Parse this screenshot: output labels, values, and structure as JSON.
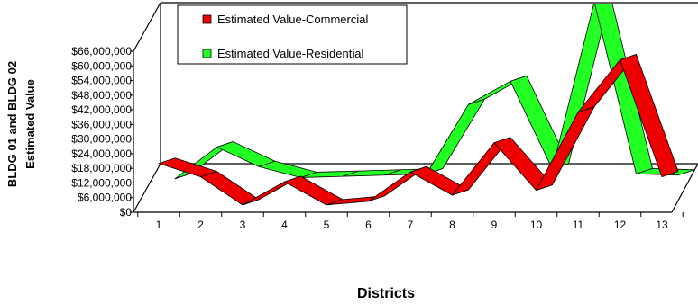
{
  "chart_data": {
    "type": "line",
    "title": "",
    "xlabel": "Districts",
    "ylabel_lines": [
      "BLDG  01 and BLDG  02",
      "Estimated Value"
    ],
    "categories": [
      "1",
      "2",
      "3",
      "4",
      "5",
      "6",
      "7",
      "8",
      "9",
      "10",
      "11",
      "12",
      "13"
    ],
    "y_ticks": [
      "$0",
      "$6,000,000",
      "$12,000,000",
      "$18,000,000",
      "$24,000,000",
      "$30,000,000",
      "$36,000,000",
      "$42,000,000",
      "$48,000,000",
      "$54,000,000",
      "$60,000,000",
      "$66,000,000"
    ],
    "ylim": [
      0,
      66000000
    ],
    "legend_position": "top",
    "series": [
      {
        "name": "Estimated Value-Commercial",
        "color": "#ee0000",
        "values": [
          20000000,
          14500000,
          3000000,
          12500000,
          3000000,
          4500000,
          16500000,
          7000000,
          28500000,
          9000000,
          41000000,
          62500000,
          14500000
        ]
      },
      {
        "name": "Estimated Value-Residential",
        "color": "#22ff22",
        "values": [
          11500000,
          24500000,
          16500000,
          12000000,
          12500000,
          13000000,
          13500000,
          42000000,
          51500000,
          15500000,
          84000000,
          13500000,
          13000000
        ]
      }
    ]
  }
}
